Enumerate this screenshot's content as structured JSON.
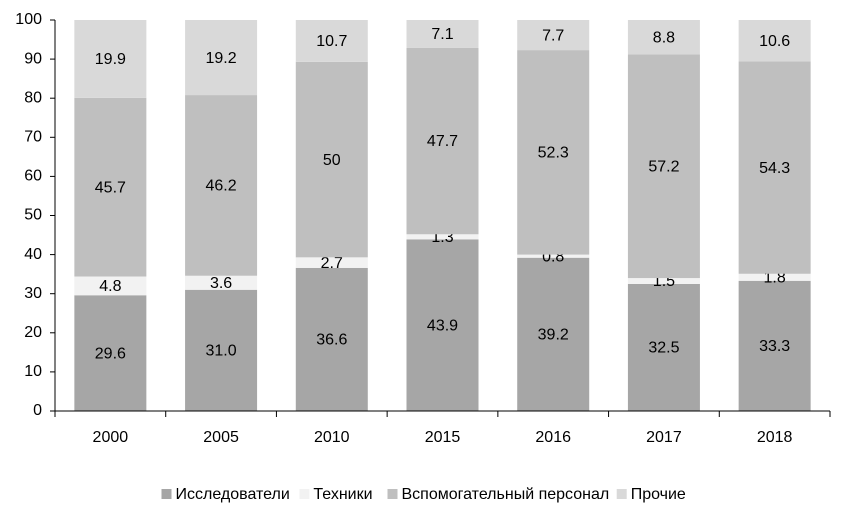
{
  "chart_data": {
    "type": "stacked_bar",
    "categories": [
      "2000",
      "2005",
      "2010",
      "2015",
      "2016",
      "2017",
      "2018"
    ],
    "series": [
      {
        "name": "Исследователи",
        "color": "#a6a6a6",
        "values": [
          29.6,
          31.0,
          36.6,
          43.9,
          39.2,
          32.5,
          33.3
        ],
        "value_labels": [
          "29.6",
          "31.0",
          "36.6",
          "43.9",
          "39.2",
          "32.5",
          "33.3"
        ]
      },
      {
        "name": "Техники",
        "color": "#f2f2f2",
        "values": [
          4.8,
          3.6,
          2.7,
          1.3,
          0.8,
          1.5,
          1.8
        ],
        "value_labels": [
          "4.8",
          "3.6",
          "2.7",
          "1.3",
          "0.8",
          "1.5",
          "1.8"
        ]
      },
      {
        "name": "Вспомогательный персонал",
        "color": "#bfbfbf",
        "values": [
          45.7,
          46.2,
          50,
          47.7,
          52.3,
          57.2,
          54.3
        ],
        "value_labels": [
          "45.7",
          "46.2",
          "50",
          "47.7",
          "52.3",
          "57.2",
          "54.3"
        ]
      },
      {
        "name": "Прочие",
        "color": "#d9d9d9",
        "values": [
          19.9,
          19.2,
          10.7,
          7.1,
          7.7,
          8.8,
          10.6
        ],
        "value_labels": [
          "19.9",
          "19.2",
          "10.7",
          "7.1",
          "7.7",
          "8.8",
          "10.6"
        ]
      }
    ],
    "ylim": [
      0,
      100
    ],
    "yticks": [
      0,
      10,
      20,
      30,
      40,
      50,
      60,
      70,
      80,
      90,
      100
    ],
    "grid": false,
    "legend": "bottom"
  }
}
